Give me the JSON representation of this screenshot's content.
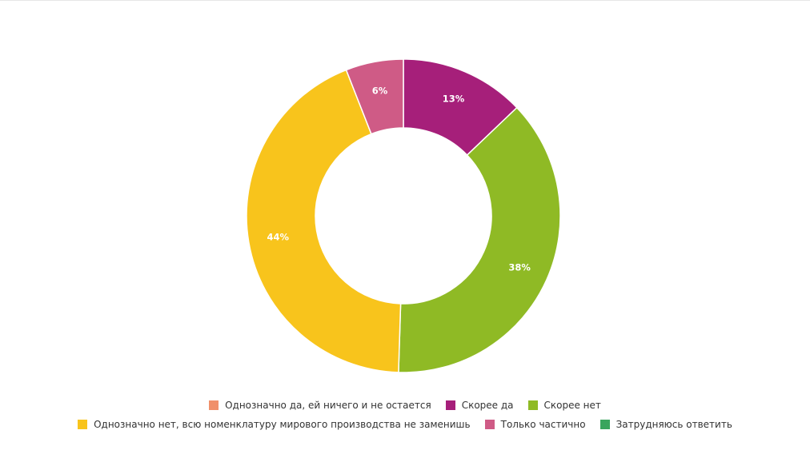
{
  "chart_data": {
    "type": "pie",
    "variant": "donut",
    "categories": [
      "Однозначно да, ей ничего и не остается",
      "Скорее да",
      "Скорее нет",
      "Однозначно нет, всю номенклатуру мирового производства не заменишь",
      "Только частично",
      "Затрудняюсь ответить"
    ],
    "values": [
      0,
      13,
      38,
      44,
      6,
      0
    ],
    "value_labels": [
      "",
      "13%",
      "38%",
      "44%",
      "6%",
      ""
    ],
    "colors": [
      "#f0906b",
      "#a61f7a",
      "#8fba25",
      "#f8c41c",
      "#cf5b86",
      "#3aa55d"
    ],
    "legend": {
      "placement": "bottom",
      "items": [
        {
          "label": "Однозначно да, ей ничего и не остается",
          "color": "#f0906b"
        },
        {
          "label": "Скорее да",
          "color": "#a61f7a"
        },
        {
          "label": "Скорее нет",
          "color": "#8fba25"
        },
        {
          "label": "Однозначно нет, всю номенклатуру мирового производства не заменишь",
          "color": "#f8c41c"
        },
        {
          "label": "Только частично",
          "color": "#cf5b86"
        },
        {
          "label": "Затрудняюсь ответить",
          "color": "#3aa55d"
        }
      ]
    }
  }
}
